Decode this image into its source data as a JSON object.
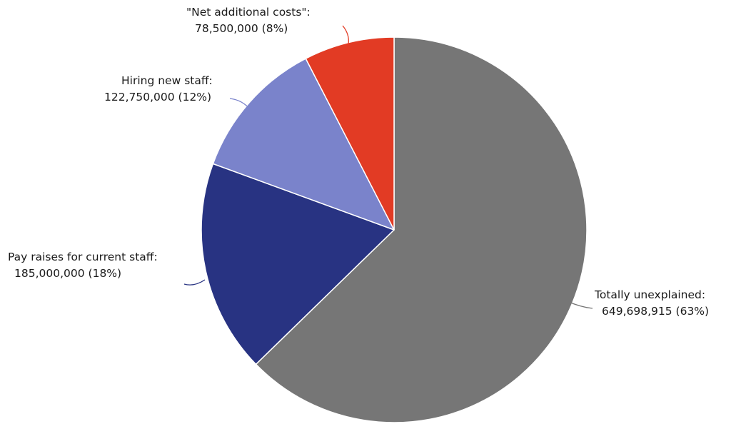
{
  "chart_data": {
    "type": "pie",
    "title": "",
    "legend": "none",
    "slices": [
      {
        "label": "Totally unexplained:",
        "value_text": "649,698,915 (63%)",
        "value": 649698915,
        "percent": 63,
        "color": "#767676"
      },
      {
        "label": "Pay raises for current staff:",
        "value_text": "185,000,000 (18%)",
        "value": 185000000,
        "percent": 18,
        "color": "#283382"
      },
      {
        "label": "Hiring new staff:",
        "value_text": "122,750,000 (12%)",
        "value": 122750000,
        "percent": 12,
        "color": "#7a83cb"
      },
      {
        "label": "\"Net additional costs\":",
        "value_text": "78,500,000 (8%)",
        "value": 78500000,
        "percent": 8,
        "color": "#e23b24"
      }
    ]
  }
}
